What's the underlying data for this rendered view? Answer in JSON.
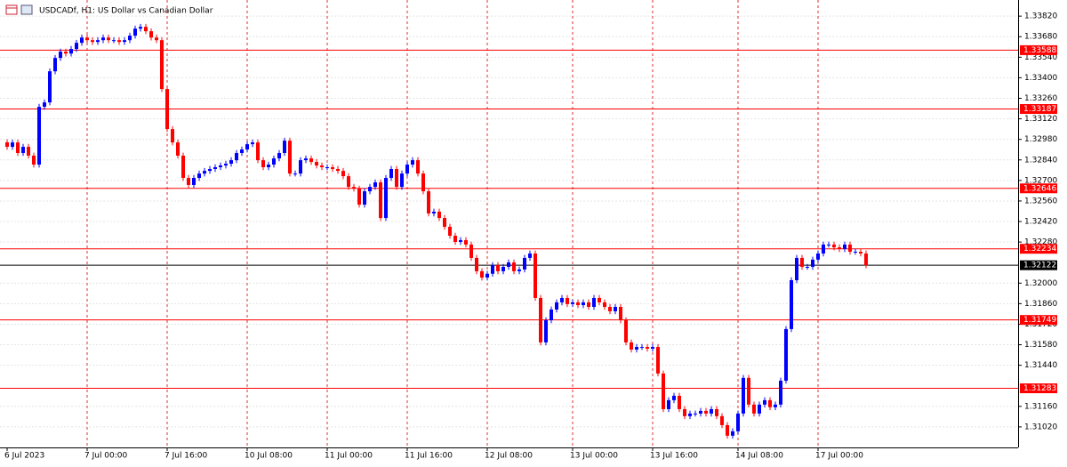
{
  "chart_data": {
    "type": "candlestick",
    "title": "USDCADf, H1:  US Dollar vs Canadian Dollar",
    "up_color": "#0000ff",
    "down_color": "#ff0000",
    "grid": true,
    "ylim": [
      1.3088,
      1.3393
    ],
    "yticks": [
      {
        "value": 1.3382,
        "label": "1.33820"
      },
      {
        "value": 1.3368,
        "label": "1.33680"
      },
      {
        "value": 1.3354,
        "label": "1.33540"
      },
      {
        "value": 1.334,
        "label": "1.33400"
      },
      {
        "value": 1.3326,
        "label": "1.33260"
      },
      {
        "value": 1.3312,
        "label": "1.33120"
      },
      {
        "value": 1.3298,
        "label": "1.32980"
      },
      {
        "value": 1.3284,
        "label": "1.32840"
      },
      {
        "value": 1.327,
        "label": "1.32700"
      },
      {
        "value": 1.3256,
        "label": "1.32560"
      },
      {
        "value": 1.3242,
        "label": "1.32420"
      },
      {
        "value": 1.3228,
        "label": "1.32280"
      },
      {
        "value": 1.32,
        "label": "1.32000"
      },
      {
        "value": 1.3186,
        "label": "1.31860"
      },
      {
        "value": 1.3172,
        "label": "1.31720"
      },
      {
        "value": 1.3158,
        "label": "1.31580"
      },
      {
        "value": 1.3144,
        "label": "1.31440"
      },
      {
        "value": 1.3116,
        "label": "1.31160"
      },
      {
        "value": 1.3102,
        "label": "1.31020"
      }
    ],
    "levels": [
      1.33588,
      1.33187,
      1.32646,
      1.32234,
      1.31749,
      1.31283
    ],
    "level_color": "#ff0000",
    "current_price": 1.32122,
    "categories": [
      "6 Jul 2023",
      null,
      null,
      null,
      null,
      null,
      null,
      null,
      null,
      null,
      null,
      null,
      null,
      null,
      null,
      "7 Jul 00:00",
      null,
      null,
      null,
      null,
      null,
      null,
      null,
      null,
      null,
      null,
      null,
      null,
      null,
      null,
      "7 Jul 16:00",
      null,
      null,
      null,
      null,
      null,
      null,
      null,
      null,
      null,
      null,
      null,
      null,
      null,
      null,
      "10 Jul 08:00",
      null,
      null,
      null,
      null,
      null,
      null,
      null,
      null,
      null,
      null,
      null,
      null,
      null,
      null,
      "11 Jul 00:00",
      null,
      null,
      null,
      null,
      null,
      null,
      null,
      null,
      null,
      null,
      null,
      null,
      null,
      null,
      "11 Jul 16:00",
      null,
      null,
      null,
      null,
      null,
      null,
      null,
      null,
      null,
      null,
      null,
      null,
      null,
      null,
      "12 Jul 08:00",
      null,
      null,
      null,
      null,
      null,
      null,
      null,
      null,
      null,
      null,
      null,
      null,
      null,
      null,
      null,
      "13 Jul 00:00",
      null,
      null,
      null,
      null,
      null,
      null,
      null,
      null,
      null,
      null,
      null,
      null,
      null,
      null,
      "13 Jul 16:00",
      null,
      null,
      null,
      null,
      null,
      null,
      null,
      null,
      null,
      null,
      null,
      null,
      null,
      null,
      null,
      "14 Jul 08:00",
      null,
      null,
      null,
      null,
      null,
      null,
      null,
      null,
      null,
      null,
      null,
      null,
      null,
      null,
      "17 Jul 00:00",
      null,
      null,
      null,
      null,
      null,
      null,
      null,
      null,
      null
    ],
    "candles": [
      [
        1.3296,
        1.3298,
        1.32909,
        1.32929
      ],
      [
        1.32929,
        1.32979,
        1.32909,
        1.32959
      ],
      [
        1.32959,
        1.32979,
        1.32867,
        1.32887
      ],
      [
        1.32887,
        1.32949,
        1.32867,
        1.32929
      ],
      [
        1.32929,
        1.32949,
        1.32849,
        1.32869
      ],
      [
        1.32869,
        1.32889,
        1.32788,
        1.32808
      ],
      [
        1.32808,
        1.33222,
        1.32788,
        1.33202
      ],
      [
        1.33202,
        1.33252,
        1.33182,
        1.33232
      ],
      [
        1.33232,
        1.33464,
        1.33212,
        1.33444
      ],
      [
        1.33444,
        1.33555,
        1.33424,
        1.33535
      ],
      [
        1.33535,
        1.33598,
        1.33515,
        1.33578
      ],
      [
        1.33578,
        1.33598,
        1.33545,
        1.33565
      ],
      [
        1.33565,
        1.33616,
        1.33545,
        1.33596
      ],
      [
        1.33596,
        1.33658,
        1.33576,
        1.33638
      ],
      [
        1.33638,
        1.33694,
        1.33618,
        1.33674
      ],
      [
        1.33674,
        1.33694,
        1.33636,
        1.33656
      ],
      [
        1.33656,
        1.33676,
        1.33624,
        1.33644
      ],
      [
        1.33644,
        1.33676,
        1.33624,
        1.33656
      ],
      [
        1.33656,
        1.33694,
        1.33636,
        1.33674
      ],
      [
        1.33674,
        1.33694,
        1.33636,
        1.33656
      ],
      [
        1.33656,
        1.33676,
        1.33636,
        1.33656
      ],
      [
        1.33656,
        1.33676,
        1.33624,
        1.33644
      ],
      [
        1.33644,
        1.33676,
        1.33624,
        1.33656
      ],
      [
        1.33656,
        1.33707,
        1.33636,
        1.33687
      ],
      [
        1.33687,
        1.33755,
        1.33667,
        1.33735
      ],
      [
        1.33735,
        1.33767,
        1.33715,
        1.33747
      ],
      [
        1.33747,
        1.33767,
        1.33697,
        1.33717
      ],
      [
        1.33717,
        1.33737,
        1.33654,
        1.33674
      ],
      [
        1.33674,
        1.33694,
        1.33636,
        1.33656
      ],
      [
        1.33656,
        1.33676,
        1.33303,
        1.33323
      ],
      [
        1.33323,
        1.33343,
        1.3303,
        1.3305
      ],
      [
        1.3305,
        1.3307,
        1.32939,
        1.32959
      ],
      [
        1.32959,
        1.32979,
        1.32849,
        1.32869
      ],
      [
        1.32869,
        1.32889,
        1.32697,
        1.32717
      ],
      [
        1.32717,
        1.32737,
        1.32649,
        1.32669
      ],
      [
        1.32669,
        1.32737,
        1.32649,
        1.32717
      ],
      [
        1.32717,
        1.32767,
        1.32697,
        1.32747
      ],
      [
        1.32747,
        1.32785,
        1.32727,
        1.32765
      ],
      [
        1.32765,
        1.32798,
        1.32745,
        1.32778
      ],
      [
        1.32778,
        1.3281,
        1.32758,
        1.3279
      ],
      [
        1.3279,
        1.32822,
        1.3277,
        1.32802
      ],
      [
        1.32802,
        1.32834,
        1.32782,
        1.32814
      ],
      [
        1.32814,
        1.32858,
        1.32794,
        1.32838
      ],
      [
        1.32838,
        1.32907,
        1.32818,
        1.32887
      ],
      [
        1.32887,
        1.32931,
        1.32867,
        1.32911
      ],
      [
        1.32911,
        1.32967,
        1.32891,
        1.32947
      ],
      [
        1.32947,
        1.32979,
        1.32927,
        1.32959
      ],
      [
        1.32959,
        1.32979,
        1.32818,
        1.32838
      ],
      [
        1.32838,
        1.32858,
        1.3277,
        1.3279
      ],
      [
        1.3279,
        1.32828,
        1.3277,
        1.32808
      ],
      [
        1.32808,
        1.3287,
        1.32788,
        1.3285
      ],
      [
        1.3285,
        1.32907,
        1.3283,
        1.32887
      ],
      [
        1.32887,
        1.32991,
        1.32867,
        1.32971
      ],
      [
        1.32971,
        1.32991,
        1.32727,
        1.32747
      ],
      [
        1.32747,
        1.32767,
        1.32727,
        1.32747
      ],
      [
        1.32747,
        1.32858,
        1.32727,
        1.32838
      ],
      [
        1.32838,
        1.3287,
        1.32818,
        1.3285
      ],
      [
        1.3285,
        1.3287,
        1.32806,
        1.32826
      ],
      [
        1.32826,
        1.32846,
        1.32782,
        1.32802
      ],
      [
        1.32802,
        1.32822,
        1.3277,
        1.3279
      ],
      [
        1.3279,
        1.3281,
        1.3277,
        1.3279
      ],
      [
        1.3279,
        1.3281,
        1.32758,
        1.32778
      ],
      [
        1.32778,
        1.32798,
        1.32745,
        1.32765
      ],
      [
        1.32765,
        1.32785,
        1.32709,
        1.32729
      ],
      [
        1.32729,
        1.32749,
        1.32636,
        1.32656
      ],
      [
        1.32656,
        1.32676,
        1.32624,
        1.32644
      ],
      [
        1.32644,
        1.32664,
        1.32515,
        1.32535
      ],
      [
        1.32535,
        1.32646,
        1.32515,
        1.32626
      ],
      [
        1.32626,
        1.32676,
        1.32606,
        1.32656
      ],
      [
        1.32656,
        1.32707,
        1.32636,
        1.32687
      ],
      [
        1.32687,
        1.32707,
        1.32424,
        1.32444
      ],
      [
        1.32444,
        1.32737,
        1.32424,
        1.32717
      ],
      [
        1.32717,
        1.32798,
        1.32697,
        1.32778
      ],
      [
        1.32778,
        1.32798,
        1.32636,
        1.32656
      ],
      [
        1.32656,
        1.32767,
        1.32636,
        1.32747
      ],
      [
        1.32747,
        1.32828,
        1.32727,
        1.32808
      ],
      [
        1.32808,
        1.32858,
        1.32788,
        1.32838
      ],
      [
        1.32838,
        1.32858,
        1.32727,
        1.32747
      ],
      [
        1.32747,
        1.32767,
        1.32606,
        1.32626
      ],
      [
        1.32626,
        1.32646,
        1.32455,
        1.32475
      ],
      [
        1.32475,
        1.32507,
        1.32455,
        1.32487
      ],
      [
        1.32487,
        1.32507,
        1.32424,
        1.32444
      ],
      [
        1.32444,
        1.32464,
        1.32364,
        1.32384
      ],
      [
        1.32384,
        1.32404,
        1.32303,
        1.32323
      ],
      [
        1.32323,
        1.32343,
        1.32261,
        1.32281
      ],
      [
        1.32281,
        1.32313,
        1.32261,
        1.32293
      ],
      [
        1.32293,
        1.32313,
        1.32243,
        1.32263
      ],
      [
        1.32263,
        1.32283,
        1.32152,
        1.32172
      ],
      [
        1.32172,
        1.32192,
        1.32061,
        1.32081
      ],
      [
        1.32081,
        1.32101,
        1.32018,
        1.32038
      ],
      [
        1.32038,
        1.32084,
        1.32018,
        1.32064
      ],
      [
        1.32064,
        1.32143,
        1.32044,
        1.32123
      ],
      [
        1.32123,
        1.32143,
        1.32061,
        1.32081
      ],
      [
        1.32081,
        1.32131,
        1.32061,
        1.32111
      ],
      [
        1.32111,
        1.32161,
        1.32091,
        1.32141
      ],
      [
        1.32141,
        1.32161,
        1.32061,
        1.32081
      ],
      [
        1.32081,
        1.32113,
        1.32061,
        1.32093
      ],
      [
        1.32093,
        1.32192,
        1.32073,
        1.32172
      ],
      [
        1.32172,
        1.32222,
        1.32152,
        1.32202
      ],
      [
        1.32202,
        1.32222,
        1.31879,
        1.31899
      ],
      [
        1.31899,
        1.31919,
        1.31576,
        1.31596
      ],
      [
        1.31596,
        1.31767,
        1.31576,
        1.31747
      ],
      [
        1.31747,
        1.3184,
        1.31727,
        1.3182
      ],
      [
        1.3182,
        1.31889,
        1.318,
        1.31869
      ],
      [
        1.31869,
        1.31919,
        1.31849,
        1.31899
      ],
      [
        1.31899,
        1.31919,
        1.31837,
        1.31857
      ],
      [
        1.31857,
        1.31889,
        1.31837,
        1.31869
      ],
      [
        1.31869,
        1.31889,
        1.3183,
        1.3185
      ],
      [
        1.3185,
        1.31889,
        1.3183,
        1.31869
      ],
      [
        1.31869,
        1.31889,
        1.31818,
        1.31838
      ],
      [
        1.31838,
        1.31919,
        1.31818,
        1.31899
      ],
      [
        1.31899,
        1.31919,
        1.31849,
        1.31869
      ],
      [
        1.31869,
        1.31889,
        1.31818,
        1.31838
      ],
      [
        1.31838,
        1.31858,
        1.31788,
        1.31808
      ],
      [
        1.31808,
        1.31858,
        1.31788,
        1.31838
      ],
      [
        1.31838,
        1.31858,
        1.31727,
        1.31747
      ],
      [
        1.31747,
        1.31767,
        1.31576,
        1.31596
      ],
      [
        1.31596,
        1.31616,
        1.31527,
        1.31547
      ],
      [
        1.31547,
        1.31585,
        1.31527,
        1.31565
      ],
      [
        1.31565,
        1.31585,
        1.31545,
        1.31565
      ],
      [
        1.31565,
        1.31585,
        1.31533,
        1.31553
      ],
      [
        1.31553,
        1.31585,
        1.31533,
        1.31565
      ],
      [
        1.31565,
        1.31585,
        1.31364,
        1.31384
      ],
      [
        1.31384,
        1.31404,
        1.31121,
        1.31141
      ],
      [
        1.31141,
        1.31222,
        1.31121,
        1.31202
      ],
      [
        1.31202,
        1.31252,
        1.31182,
        1.31232
      ],
      [
        1.31232,
        1.31252,
        1.31121,
        1.31141
      ],
      [
        1.31141,
        1.31161,
        1.31073,
        1.31093
      ],
      [
        1.31093,
        1.31131,
        1.31073,
        1.31111
      ],
      [
        1.31111,
        1.31131,
        1.31091,
        1.31111
      ],
      [
        1.31111,
        1.31149,
        1.31091,
        1.31129
      ],
      [
        1.31129,
        1.31149,
        1.31091,
        1.31111
      ],
      [
        1.31111,
        1.31161,
        1.31091,
        1.31141
      ],
      [
        1.31141,
        1.31161,
        1.31073,
        1.31093
      ],
      [
        1.31093,
        1.31113,
        1.31012,
        1.31032
      ],
      [
        1.31032,
        1.31052,
        1.3094,
        1.3096
      ],
      [
        1.3096,
        1.3101,
        1.3094,
        1.3099
      ],
      [
        1.3099,
        1.31131,
        1.3097,
        1.31111
      ],
      [
        1.31111,
        1.31374,
        1.31091,
        1.31354
      ],
      [
        1.31354,
        1.31374,
        1.31152,
        1.31172
      ],
      [
        1.31172,
        1.31192,
        1.31091,
        1.31111
      ],
      [
        1.31111,
        1.31192,
        1.31091,
        1.31172
      ],
      [
        1.31172,
        1.31222,
        1.31152,
        1.31202
      ],
      [
        1.31202,
        1.31222,
        1.31134,
        1.31154
      ],
      [
        1.31154,
        1.31192,
        1.31134,
        1.31172
      ],
      [
        1.31172,
        1.31355,
        1.31152,
        1.31335
      ],
      [
        1.31335,
        1.31707,
        1.31315,
        1.31687
      ],
      [
        1.31687,
        1.3204,
        1.31667,
        1.3202
      ],
      [
        1.3202,
        1.32192,
        1.32,
        1.32172
      ],
      [
        1.32172,
        1.32192,
        1.32091,
        1.32111
      ],
      [
        1.32111,
        1.32131,
        1.32091,
        1.32111
      ],
      [
        1.32111,
        1.3218,
        1.32091,
        1.3216
      ],
      [
        1.3216,
        1.32222,
        1.3214,
        1.32202
      ],
      [
        1.32202,
        1.32283,
        1.32182,
        1.32263
      ],
      [
        1.32263,
        1.32283,
        1.32243,
        1.32263
      ],
      [
        1.32263,
        1.32283,
        1.32224,
        1.32244
      ],
      [
        1.32244,
        1.32264,
        1.32212,
        1.32232
      ],
      [
        1.32232,
        1.32283,
        1.32212,
        1.32263
      ],
      [
        1.32263,
        1.32283,
        1.32194,
        1.32214
      ],
      [
        1.32214,
        1.32234,
        1.32194,
        1.32214
      ],
      [
        1.32214,
        1.32234,
        1.32182,
        1.32202
      ],
      [
        1.32202,
        1.32222,
        1.32102,
        1.32122
      ]
    ]
  }
}
